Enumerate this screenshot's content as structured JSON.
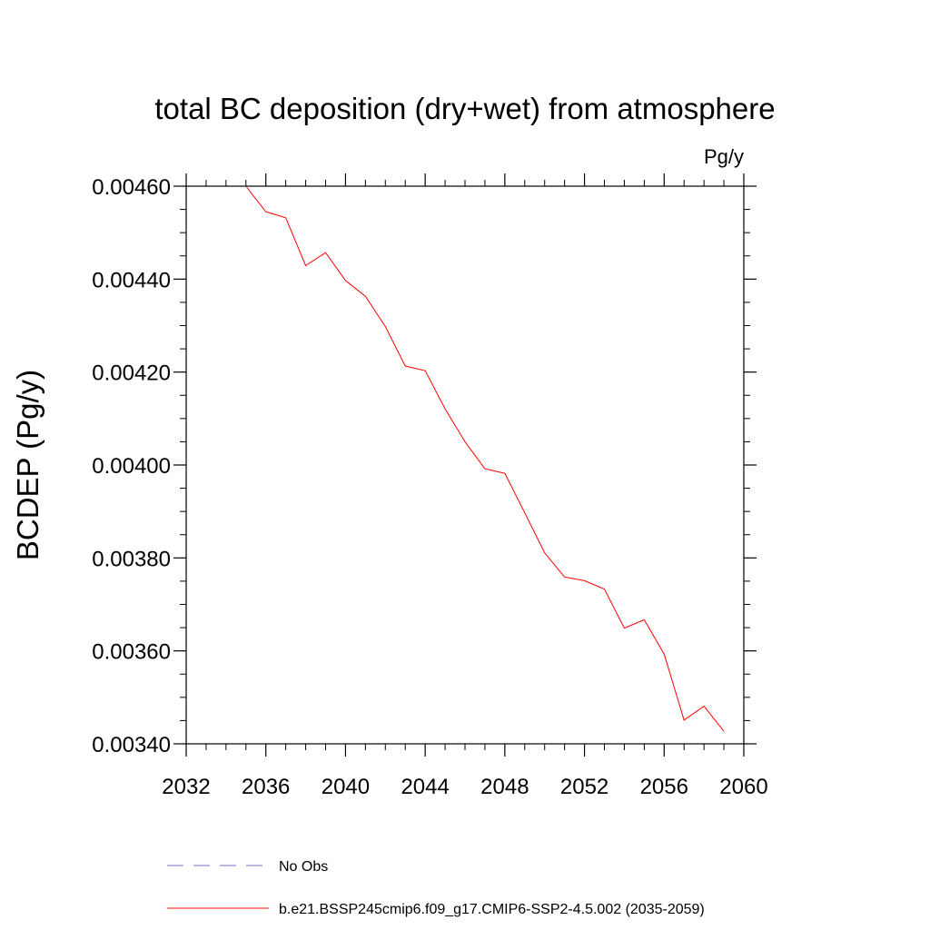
{
  "chart_data": {
    "type": "line",
    "title": "total BC deposition (dry+wet) from atmosphere",
    "units": "Pg/y",
    "xlabel": "",
    "ylabel": "BCDEP  (Pg/y)",
    "xlim": [
      2032,
      2060
    ],
    "ylim": [
      0.0034,
      0.0046
    ],
    "x_ticks": [
      2032,
      2036,
      2040,
      2044,
      2048,
      2052,
      2056,
      2060
    ],
    "x_tick_labels": [
      "2032",
      "2036",
      "2040",
      "2044",
      "2048",
      "2052",
      "2056",
      "2060"
    ],
    "y_ticks": [
      0.0034,
      0.0036,
      0.0038,
      0.004,
      0.0042,
      0.0044,
      0.0046
    ],
    "y_tick_labels": [
      "0.00340",
      "0.00360",
      "0.00380",
      "0.00400",
      "0.00420",
      "0.00440",
      "0.00460"
    ],
    "grid": false,
    "legend_position": "bottom",
    "series": [
      {
        "name": "No Obs",
        "color": "#7b6fc4",
        "style": "dashed",
        "x": [],
        "y": []
      },
      {
        "name": "b.e21.BSSP245cmip6.f09_g17.CMIP6-SSP2-4.5.002 (2035-2059)",
        "color": "#ff0000",
        "style": "solid",
        "x": [
          2035,
          2036,
          2037,
          2038,
          2039,
          2040,
          2041,
          2042,
          2043,
          2044,
          2045,
          2046,
          2047,
          2048,
          2049,
          2050,
          2051,
          2052,
          2053,
          2054,
          2055,
          2056,
          2057,
          2058,
          2059
        ],
        "y": [
          0.0046,
          0.004545,
          0.004532,
          0.004429,
          0.004457,
          0.004397,
          0.004363,
          0.004298,
          0.004213,
          0.004203,
          0.004121,
          0.00405,
          0.003992,
          0.003982,
          0.003897,
          0.003811,
          0.003759,
          0.003751,
          0.003733,
          0.003649,
          0.003667,
          0.003593,
          0.003451,
          0.003481,
          0.003427
        ]
      }
    ]
  }
}
